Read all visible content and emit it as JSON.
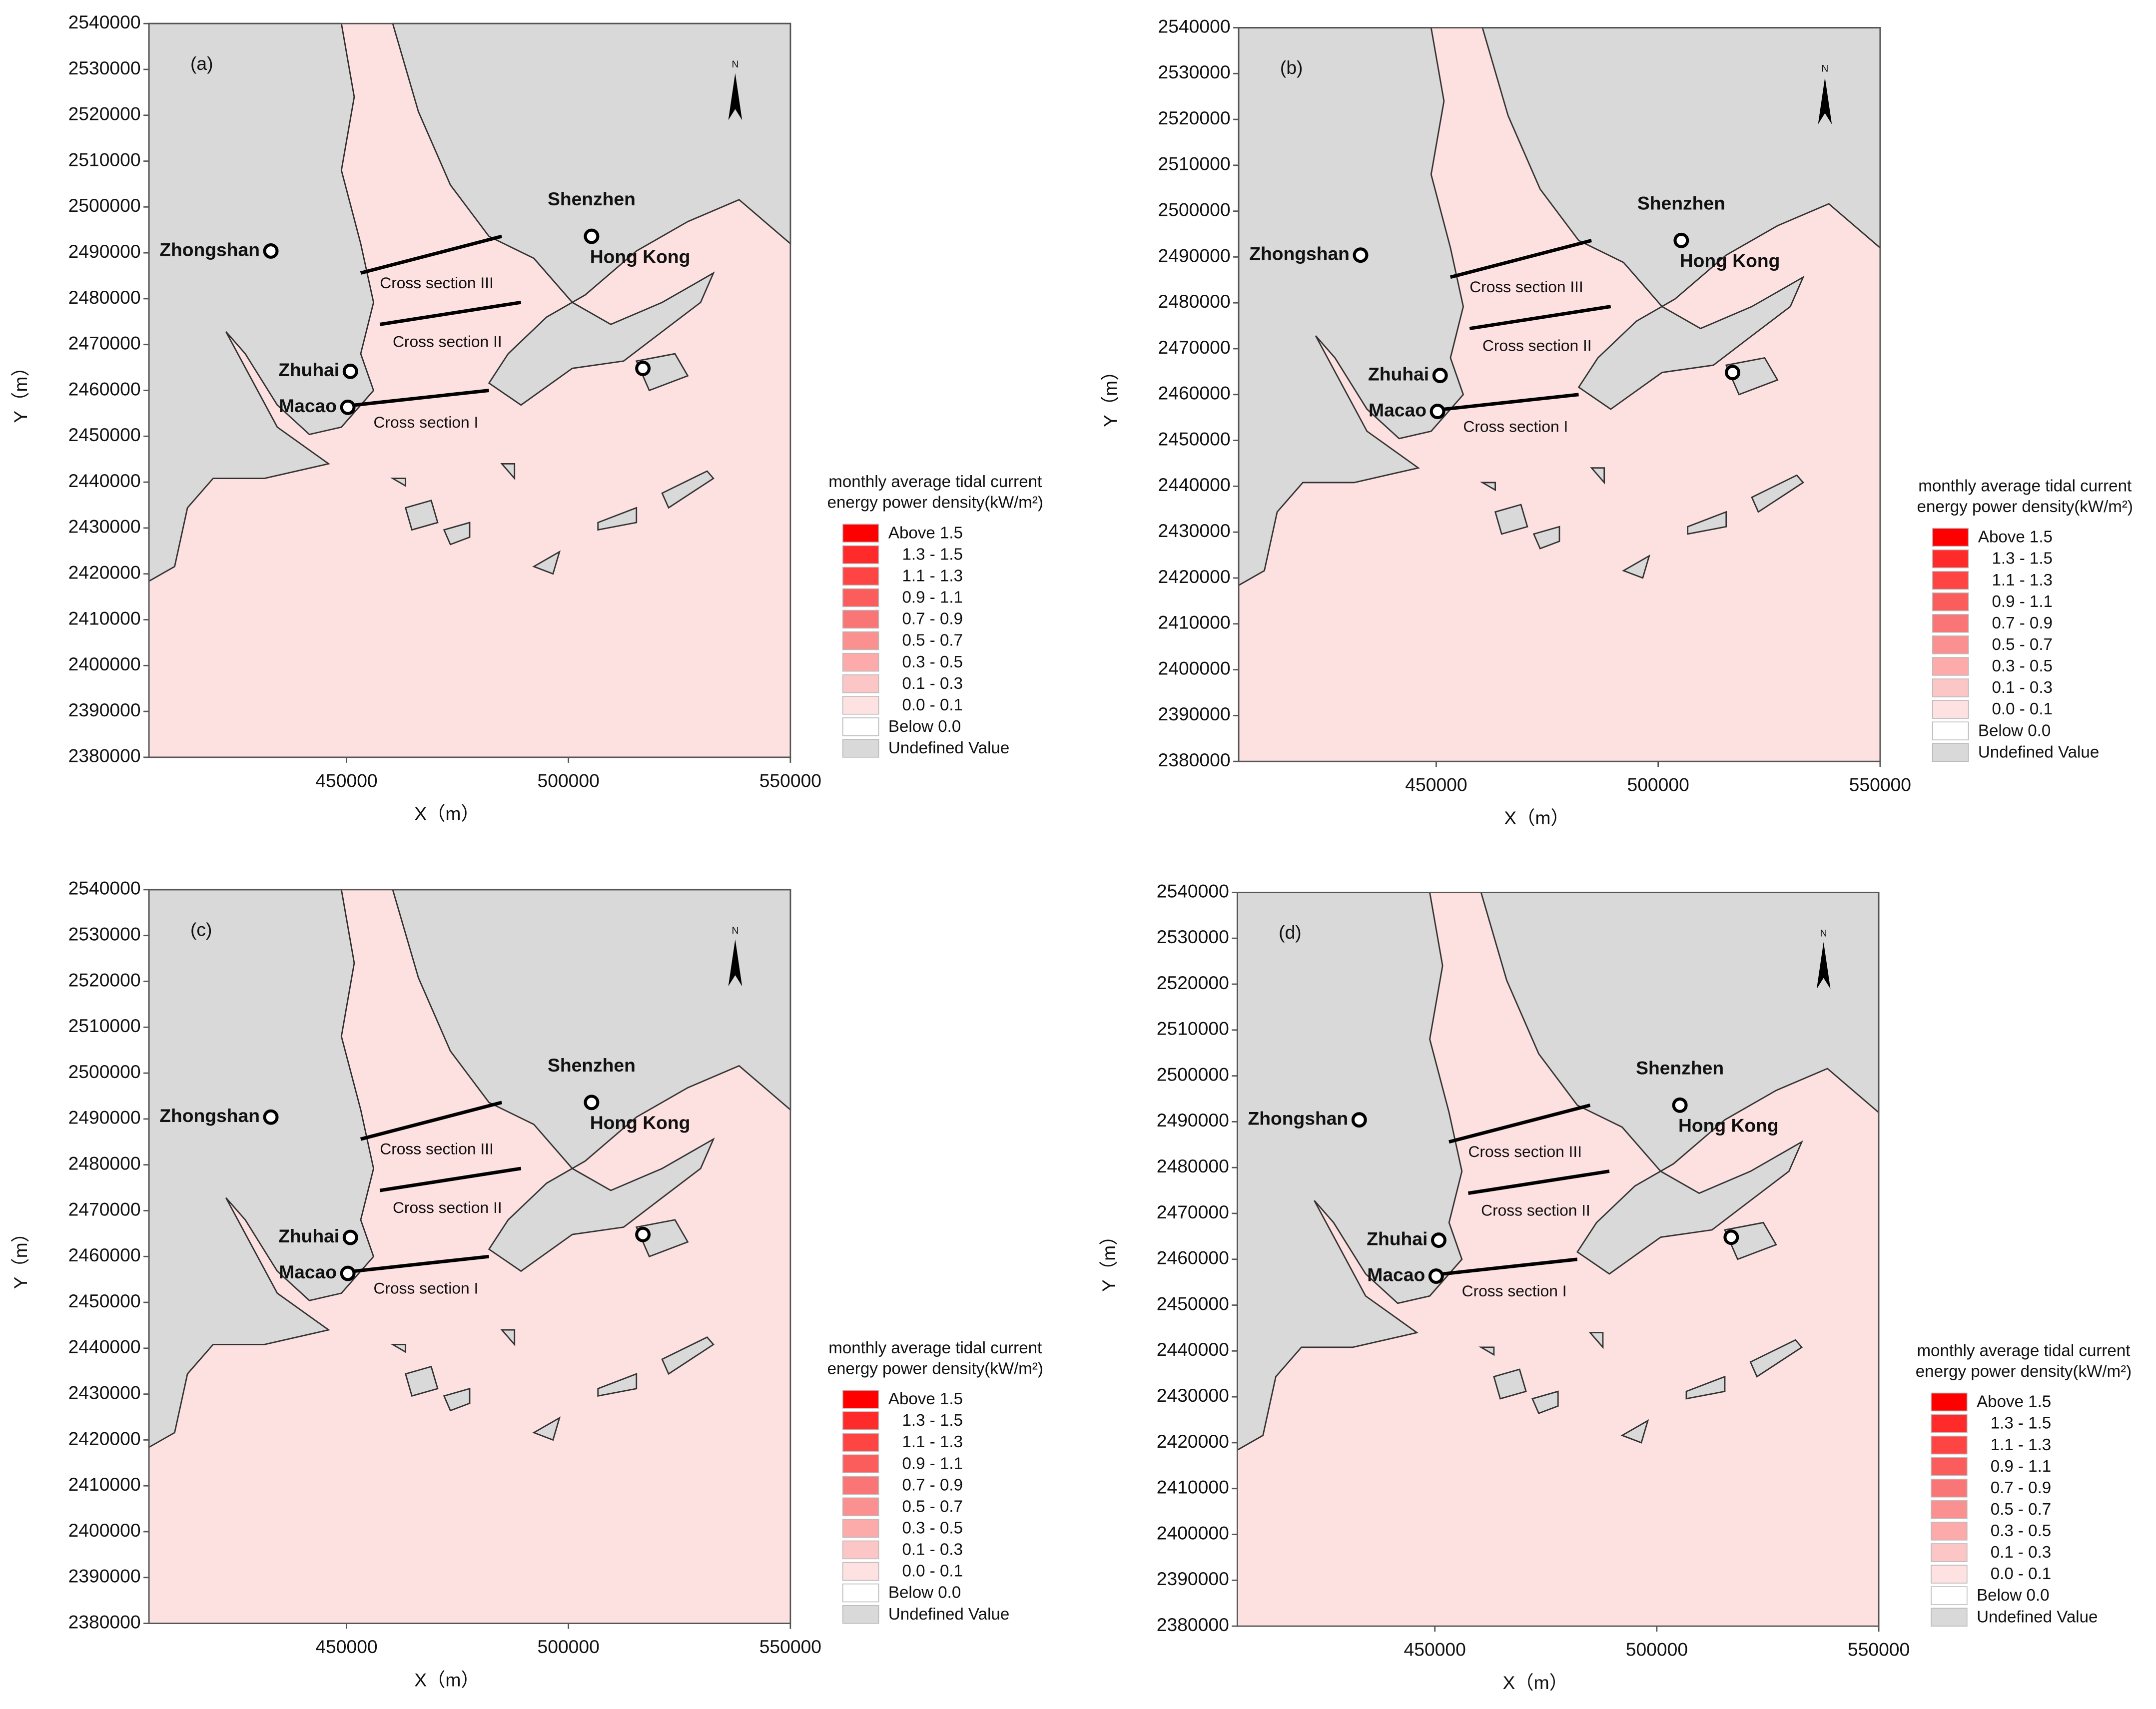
{
  "panel_labels": [
    "(a)",
    "(b)",
    "(c)",
    "(d)"
  ],
  "x_axis": {
    "title": "X（m）",
    "lim": [
      405500,
      550000
    ],
    "ticks": [
      450000,
      500000,
      550000
    ]
  },
  "y_axis": {
    "title": "Y（m）",
    "lim": [
      2380000,
      2540000
    ],
    "ticks": [
      2380000,
      2390000,
      2400000,
      2410000,
      2420000,
      2430000,
      2440000,
      2450000,
      2460000,
      2470000,
      2480000,
      2490000,
      2500000,
      2510000,
      2520000,
      2530000,
      2540000
    ]
  },
  "places": [
    "Zhongshan",
    "Shenzhen",
    "Hong Kong",
    "Zhuhai",
    "Macao"
  ],
  "cross_sections": [
    "Cross section I",
    "Cross section II",
    "Cross section III"
  ],
  "north": "N",
  "legend": {
    "title": [
      "monthly average tidal current",
      "energy power density(kW/m²)"
    ],
    "items": [
      {
        "label": "Above 1.5",
        "color": "#ff0000"
      },
      {
        "label": "1.3 - 1.5",
        "color": "#ff2a2a"
      },
      {
        "label": "1.1 - 1.3",
        "color": "#ff4444"
      },
      {
        "label": "0.9 - 1.1",
        "color": "#fb5c5c"
      },
      {
        "label": "0.7 - 0.9",
        "color": "#fa7676"
      },
      {
        "label": "0.5 - 0.7",
        "color": "#fb9090"
      },
      {
        "label": "0.3 - 0.5",
        "color": "#fcaaaa"
      },
      {
        "label": "0.1 - 0.3",
        "color": "#fdc6c6"
      },
      {
        "label": "0.0 - 0.1",
        "color": "#fee2e2"
      },
      {
        "label": "Below 0.0",
        "color": "#ffffff"
      },
      {
        "label": "Undefined Value",
        "color": "#d9d9d9"
      }
    ]
  }
}
